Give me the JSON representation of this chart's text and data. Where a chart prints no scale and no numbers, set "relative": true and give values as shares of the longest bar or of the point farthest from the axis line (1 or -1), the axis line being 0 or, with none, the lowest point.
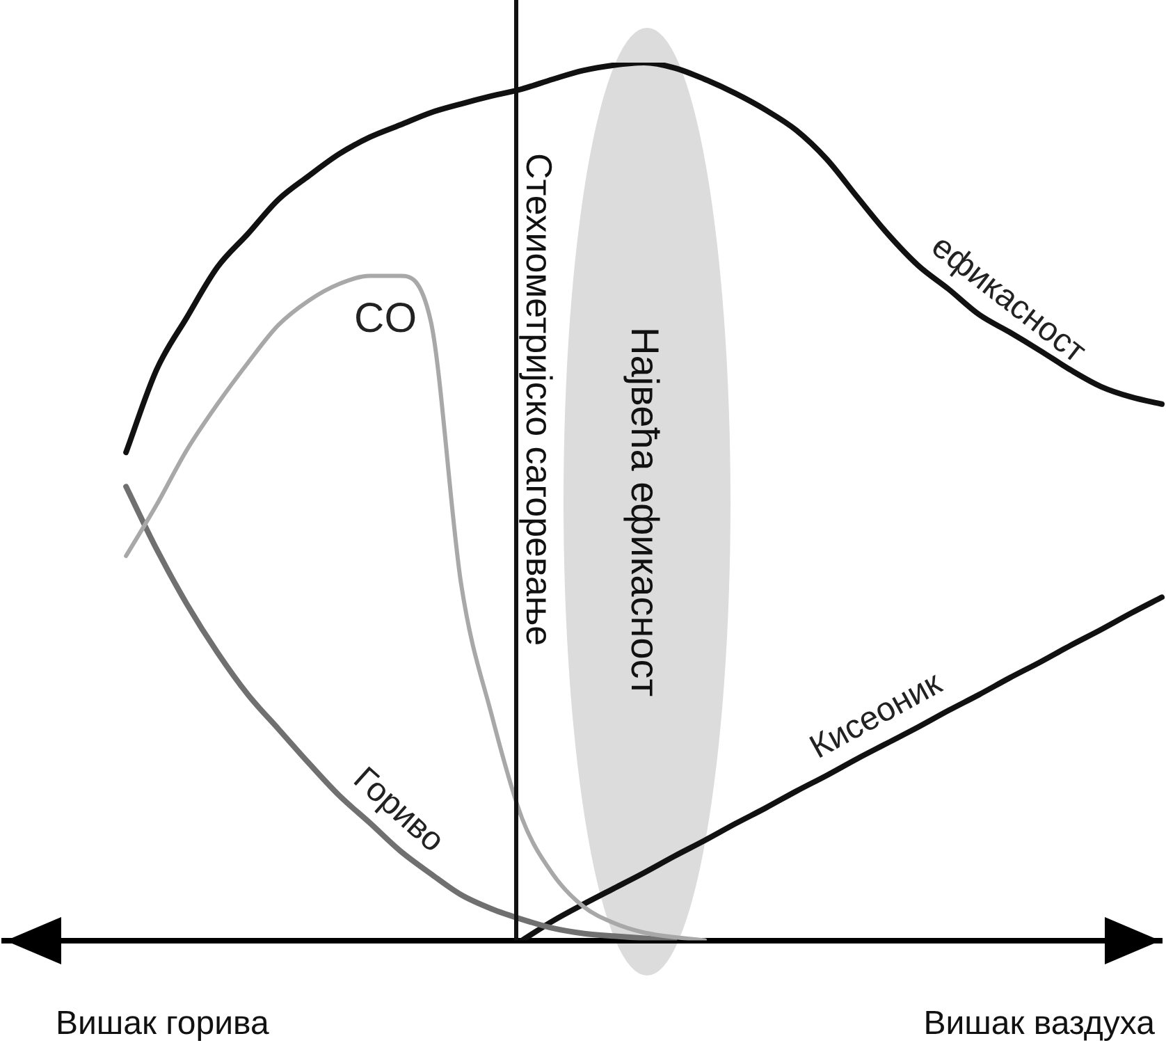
{
  "chart_data": {
    "type": "line",
    "relative": true,
    "grid": false,
    "legend": false,
    "marker": "none",
    "line_style": "solid",
    "categories": [
      null,
      null,
      null,
      null,
      null,
      null,
      null,
      null,
      null,
      null,
      null,
      null,
      null,
      null,
      null,
      null,
      null,
      null,
      null,
      null,
      null,
      null,
      null,
      null,
      null,
      null,
      null,
      null,
      null,
      null,
      null,
      null,
      null,
      null,
      null,
      null,
      null,
      null,
      null
    ],
    "series": [
      {
        "name": "ефикасност",
        "color": "#111111",
        "values": [
          null,
          null,
          null,
          null,
          0.556,
          0.65,
          0.71,
          0.767,
          0.805,
          0.844,
          0.871,
          0.896,
          0.915,
          0.929,
          0.943,
          0.953,
          0.962,
          0.97,
          0.981,
          0.991,
          0.997,
          1,
          0.994,
          0.981,
          0.965,
          0.946,
          0.923,
          0.89,
          0.847,
          0.805,
          0.769,
          0.742,
          0.713,
          0.693,
          0.672,
          0.65,
          0.631,
          0.619,
          0.611
        ]
      },
      {
        "name": "CO",
        "color": "#a8a8a8",
        "values": [
          null,
          null,
          null,
          null,
          0.438,
          0.496,
          0.559,
          0.611,
          0.658,
          0.701,
          0.729,
          0.748,
          0.757,
          0.757,
          0.706,
          0.406,
          0.257,
          0.139,
          0.076,
          0.039,
          0.02,
          0.009,
          null,
          0,
          null,
          null,
          null,
          null,
          null,
          null,
          null,
          null,
          null,
          null,
          null,
          null,
          null,
          null,
          null
        ]
      },
      {
        "name": "Гориво",
        "color": "#707070",
        "values": [
          null,
          null,
          null,
          null,
          0.517,
          0.446,
          0.383,
          0.328,
          0.28,
          0.241,
          0.202,
          0.165,
          0.134,
          0.102,
          0.076,
          0.052,
          0.036,
          0.024,
          0.014,
          0.008,
          0.005,
          null,
          0,
          null,
          null,
          null,
          null,
          null,
          null,
          null,
          null,
          null,
          null,
          null,
          null,
          null,
          null,
          null,
          null
        ]
      },
      {
        "name": "Кисеоник",
        "color": "#111111",
        "values": [
          null,
          null,
          null,
          null,
          null,
          null,
          null,
          null,
          null,
          null,
          null,
          null,
          null,
          null,
          null,
          null,
          null,
          0,
          0.022,
          0.041,
          0.059,
          0.077,
          0.096,
          0.114,
          0.133,
          0.151,
          0.17,
          0.188,
          0.207,
          0.225,
          0.243,
          0.262,
          0.28,
          0.299,
          0.317,
          0.336,
          0.354,
          0.373,
          0.391
        ]
      }
    ],
    "annotations": [
      "Стехиометријско сагоревање",
      "Највећа ефикасност",
      "Вишак горива",
      "Вишак ваздуха"
    ]
  }
}
